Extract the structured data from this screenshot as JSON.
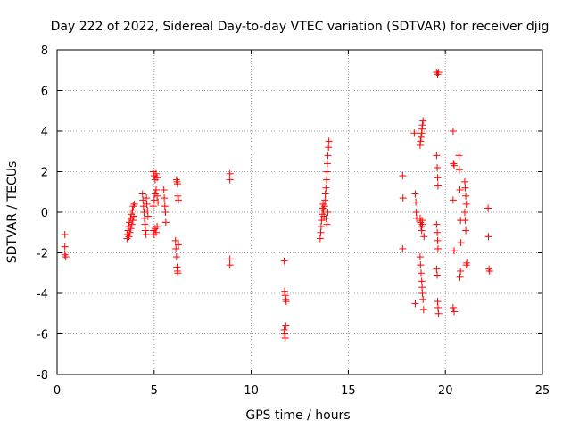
{
  "chart_data": {
    "type": "scatter",
    "title": "Day 222 of 2022, Sidereal Day-to-day VTEC variation (SDTVAR) for receiver djig",
    "xlabel": "GPS time / hours",
    "ylabel": "SDTVAR / TECUs",
    "xlim": [
      0,
      25
    ],
    "ylim": [
      -8,
      8
    ],
    "xticks": [
      "0",
      "5",
      "10",
      "15",
      "20",
      "25"
    ],
    "yticks": [
      "-8",
      "-6",
      "-4",
      "-2",
      "0",
      "2",
      "4",
      "6",
      "8"
    ],
    "grid": true,
    "marker": "plus",
    "color": "#ff0000",
    "series": [
      {
        "name": "SDTVAR",
        "points": [
          [
            0.4,
            -1.1
          ],
          [
            0.4,
            -1.7
          ],
          [
            0.4,
            -2.1
          ],
          [
            0.45,
            -2.2
          ],
          [
            3.6,
            -1.3
          ],
          [
            3.62,
            -1.1
          ],
          [
            3.65,
            -0.9
          ],
          [
            3.68,
            -0.7
          ],
          [
            3.7,
            -1.2
          ],
          [
            3.72,
            -0.5
          ],
          [
            3.75,
            -1.0
          ],
          [
            3.78,
            -0.3
          ],
          [
            3.8,
            -0.8
          ],
          [
            3.82,
            -0.1
          ],
          [
            3.85,
            -0.6
          ],
          [
            3.88,
            0.1
          ],
          [
            3.9,
            -0.4
          ],
          [
            3.92,
            0.3
          ],
          [
            3.95,
            -0.2
          ],
          [
            3.98,
            0.4
          ],
          [
            4.4,
            0.9
          ],
          [
            4.42,
            0.6
          ],
          [
            4.45,
            0.3
          ],
          [
            4.48,
            0.0
          ],
          [
            4.5,
            -0.3
          ],
          [
            4.52,
            -0.6
          ],
          [
            4.55,
            -0.9
          ],
          [
            4.58,
            -1.1
          ],
          [
            4.6,
            0.7
          ],
          [
            4.62,
            0.4
          ],
          [
            4.65,
            0.1
          ],
          [
            4.68,
            -0.2
          ],
          [
            4.95,
            2.0
          ],
          [
            5.0,
            1.8
          ],
          [
            5.05,
            1.6
          ],
          [
            5.1,
            1.9
          ],
          [
            5.15,
            1.7
          ],
          [
            4.95,
            0.3
          ],
          [
            5.0,
            0.6
          ],
          [
            5.05,
            0.9
          ],
          [
            5.1,
            1.1
          ],
          [
            5.15,
            0.8
          ],
          [
            5.2,
            0.5
          ],
          [
            4.95,
            -0.9
          ],
          [
            5.0,
            -1.1
          ],
          [
            5.05,
            -0.8
          ],
          [
            5.1,
            -1.0
          ],
          [
            5.15,
            -0.7
          ],
          [
            5.5,
            1.1
          ],
          [
            5.52,
            0.7
          ],
          [
            5.55,
            0.3
          ],
          [
            5.58,
            0.0
          ],
          [
            5.6,
            -0.5
          ],
          [
            6.15,
            1.6
          ],
          [
            6.18,
            1.5
          ],
          [
            6.2,
            1.4
          ],
          [
            6.22,
            0.8
          ],
          [
            6.25,
            0.6
          ],
          [
            6.1,
            -1.4
          ],
          [
            6.12,
            -1.8
          ],
          [
            6.15,
            -2.2
          ],
          [
            6.18,
            -2.7
          ],
          [
            6.2,
            -2.9
          ],
          [
            6.22,
            -3.0
          ],
          [
            6.25,
            -1.6
          ],
          [
            8.9,
            1.9
          ],
          [
            8.9,
            1.6
          ],
          [
            8.9,
            -2.3
          ],
          [
            8.9,
            -2.6
          ],
          [
            11.7,
            -2.4
          ],
          [
            11.72,
            -3.9
          ],
          [
            11.75,
            -4.1
          ],
          [
            11.78,
            -4.3
          ],
          [
            11.8,
            -4.4
          ],
          [
            11.7,
            -5.8
          ],
          [
            11.72,
            -6.0
          ],
          [
            11.75,
            -6.2
          ],
          [
            11.78,
            -5.6
          ],
          [
            13.55,
            -1.3
          ],
          [
            13.58,
            -1.0
          ],
          [
            13.6,
            -0.7
          ],
          [
            13.62,
            -0.4
          ],
          [
            13.65,
            -0.1
          ],
          [
            13.68,
            0.2
          ],
          [
            13.7,
            0.4
          ],
          [
            13.72,
            0.1
          ],
          [
            13.75,
            -0.2
          ],
          [
            13.78,
            0.3
          ],
          [
            13.8,
            0.6
          ],
          [
            13.82,
            0.9
          ],
          [
            13.85,
            1.2
          ],
          [
            13.88,
            1.6
          ],
          [
            13.9,
            2.0
          ],
          [
            13.92,
            2.4
          ],
          [
            13.95,
            2.8
          ],
          [
            13.98,
            3.2
          ],
          [
            14.0,
            3.5
          ],
          [
            13.85,
            -0.3
          ],
          [
            13.9,
            -0.6
          ],
          [
            13.95,
            0.0
          ],
          [
            17.8,
            1.8
          ],
          [
            17.82,
            0.7
          ],
          [
            17.8,
            -1.8
          ],
          [
            18.4,
            3.9
          ],
          [
            18.45,
            0.9
          ],
          [
            18.48,
            0.5
          ],
          [
            18.5,
            0.0
          ],
          [
            18.52,
            -0.3
          ],
          [
            18.45,
            -4.5
          ],
          [
            18.7,
            3.3
          ],
          [
            18.72,
            3.5
          ],
          [
            18.75,
            3.7
          ],
          [
            18.78,
            3.9
          ],
          [
            18.8,
            4.1
          ],
          [
            18.82,
            4.3
          ],
          [
            18.85,
            4.5
          ],
          [
            18.7,
            -0.3
          ],
          [
            18.72,
            -0.5
          ],
          [
            18.75,
            -0.7
          ],
          [
            18.78,
            -0.9
          ],
          [
            18.8,
            -0.4
          ],
          [
            18.82,
            -0.6
          ],
          [
            18.7,
            -2.2
          ],
          [
            18.72,
            -2.6
          ],
          [
            18.75,
            -3.0
          ],
          [
            18.78,
            -3.4
          ],
          [
            18.8,
            -3.7
          ],
          [
            18.82,
            -4.0
          ],
          [
            18.85,
            -4.3
          ],
          [
            18.88,
            -4.8
          ],
          [
            18.9,
            -1.2
          ],
          [
            19.55,
            6.9
          ],
          [
            19.6,
            6.8
          ],
          [
            19.65,
            6.9
          ],
          [
            19.55,
            2.8
          ],
          [
            19.58,
            2.2
          ],
          [
            19.6,
            1.7
          ],
          [
            19.62,
            1.3
          ],
          [
            19.55,
            -0.6
          ],
          [
            19.58,
            -1.0
          ],
          [
            19.6,
            -1.4
          ],
          [
            19.62,
            -1.8
          ],
          [
            19.55,
            -2.8
          ],
          [
            19.58,
            -3.1
          ],
          [
            19.6,
            -4.4
          ],
          [
            19.62,
            -4.7
          ],
          [
            19.65,
            -5.0
          ],
          [
            20.4,
            4.0
          ],
          [
            20.42,
            2.4
          ],
          [
            20.45,
            2.3
          ],
          [
            20.4,
            0.6
          ],
          [
            20.45,
            -1.9
          ],
          [
            20.4,
            -4.7
          ],
          [
            20.45,
            -4.9
          ],
          [
            20.7,
            2.8
          ],
          [
            20.72,
            2.1
          ],
          [
            20.75,
            1.1
          ],
          [
            20.78,
            -0.4
          ],
          [
            20.8,
            -1.5
          ],
          [
            20.75,
            -3.2
          ],
          [
            20.78,
            -2.9
          ],
          [
            21.0,
            1.5
          ],
          [
            21.02,
            1.2
          ],
          [
            21.05,
            0.8
          ],
          [
            21.08,
            0.4
          ],
          [
            21.0,
            0.0
          ],
          [
            21.02,
            -0.4
          ],
          [
            21.05,
            -0.9
          ],
          [
            21.08,
            -2.6
          ],
          [
            21.1,
            -2.5
          ],
          [
            22.2,
            0.2
          ],
          [
            22.22,
            -1.2
          ],
          [
            22.25,
            -2.8
          ],
          [
            22.28,
            -2.9
          ]
        ]
      }
    ]
  }
}
